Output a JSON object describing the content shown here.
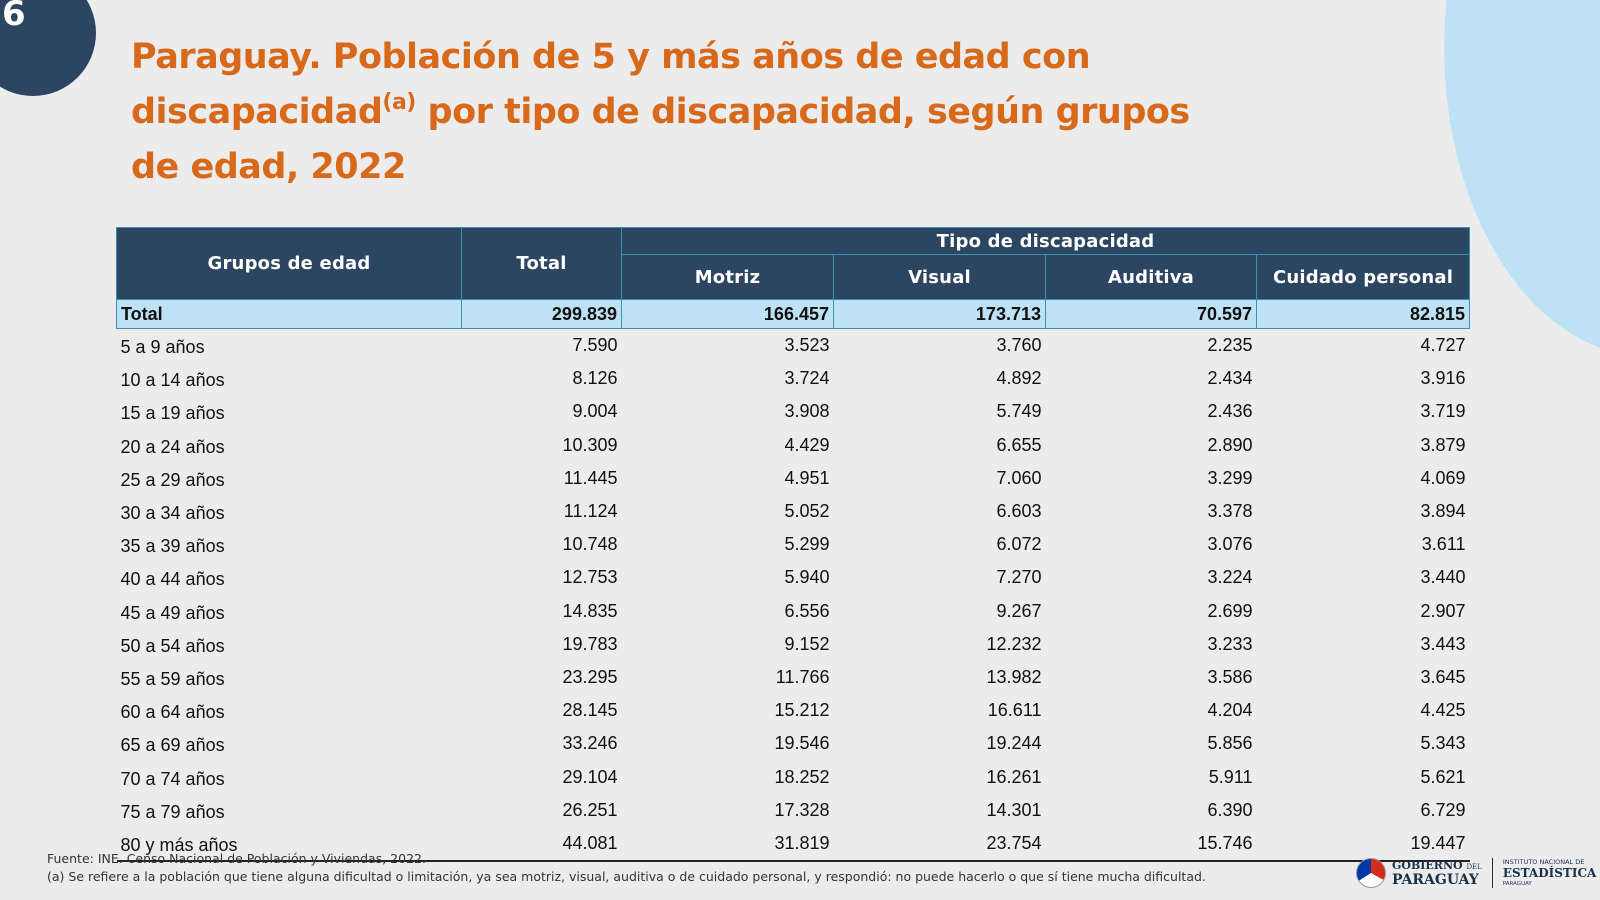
{
  "slide_number": "6",
  "title": {
    "part1": "Paraguay.  Población de 5 y más años de edad con discapacidad",
    "sup": "(a)",
    "part2": " por tipo de discapacidad, según grupos de edad, 2022"
  },
  "table": {
    "headers": {
      "grupos": "Grupos de edad",
      "total": "Total",
      "tipo": "Tipo de discapacidad",
      "motriz": "Motriz",
      "visual": "Visual",
      "auditiva": "Auditiva",
      "cuidado": "Cuidado personal"
    },
    "total_row": [
      "Total",
      "299.839",
      "166.457",
      "173.713",
      "70.597",
      "82.815"
    ],
    "rows": [
      [
        "5 a 9 años",
        "7.590",
        "3.523",
        "3.760",
        "2.235",
        "4.727"
      ],
      [
        "10 a 14 años",
        "8.126",
        "3.724",
        "4.892",
        "2.434",
        "3.916"
      ],
      [
        "15 a 19 años",
        "9.004",
        "3.908",
        "5.749",
        "2.436",
        "3.719"
      ],
      [
        "20 a 24 años",
        "10.309",
        "4.429",
        "6.655",
        "2.890",
        "3.879"
      ],
      [
        "25 a 29 años",
        "11.445",
        "4.951",
        "7.060",
        "3.299",
        "4.069"
      ],
      [
        "30 a 34 años",
        "11.124",
        "5.052",
        "6.603",
        "3.378",
        "3.894"
      ],
      [
        "35 a 39 años",
        "10.748",
        "5.299",
        "6.072",
        "3.076",
        "3.611"
      ],
      [
        "40 a 44 años",
        "12.753",
        "5.940",
        "7.270",
        "3.224",
        "3.440"
      ],
      [
        "45 a 49 años",
        "14.835",
        "6.556",
        "9.267",
        "2.699",
        "2.907"
      ],
      [
        "50 a 54 años",
        "19.783",
        "9.152",
        "12.232",
        "3.233",
        "3.443"
      ],
      [
        "55 a 59 años",
        "23.295",
        "11.766",
        "13.982",
        "3.586",
        "3.645"
      ],
      [
        "60 a 64 años",
        "28.145",
        "15.212",
        "16.611",
        "4.204",
        "4.425"
      ],
      [
        "65 a 69 años",
        "33.246",
        "19.546",
        "19.244",
        "5.856",
        "5.343"
      ],
      [
        "70 a 74 años",
        "29.104",
        "18.252",
        "16.261",
        "5.911",
        "5.621"
      ],
      [
        "75 a 79 años",
        "26.251",
        "17.328",
        "14.301",
        "6.390",
        "6.729"
      ],
      [
        "80 y más años",
        "44.081",
        "31.819",
        "23.754",
        "15.746",
        "19.447"
      ]
    ]
  },
  "footer": {
    "source": "Fuente: INE. Censo Nacional de Población y Viviendas, 2022.",
    "note": "(a) Se refiere a la población que tiene alguna dificultad o limitación, ya sea motriz, visual, auditiva o de cuidado personal, y respondió: no puede hacerlo o que sí tiene mucha dificultad."
  },
  "logos": {
    "gov_line1": "GOBIERNO",
    "gov_del": "DEL",
    "gov_line2": "PARAGUAY",
    "ine_line1": "INSTITUTO NACIONAL DE",
    "ine_line2": "ESTADÍSTICA",
    "ine_line3": "PARAGUAY"
  },
  "colors": {
    "header_bg": "#2c4560",
    "total_row_bg": "#bde2f3",
    "title_color": "#d8691b",
    "blob": "#bde2f3"
  }
}
